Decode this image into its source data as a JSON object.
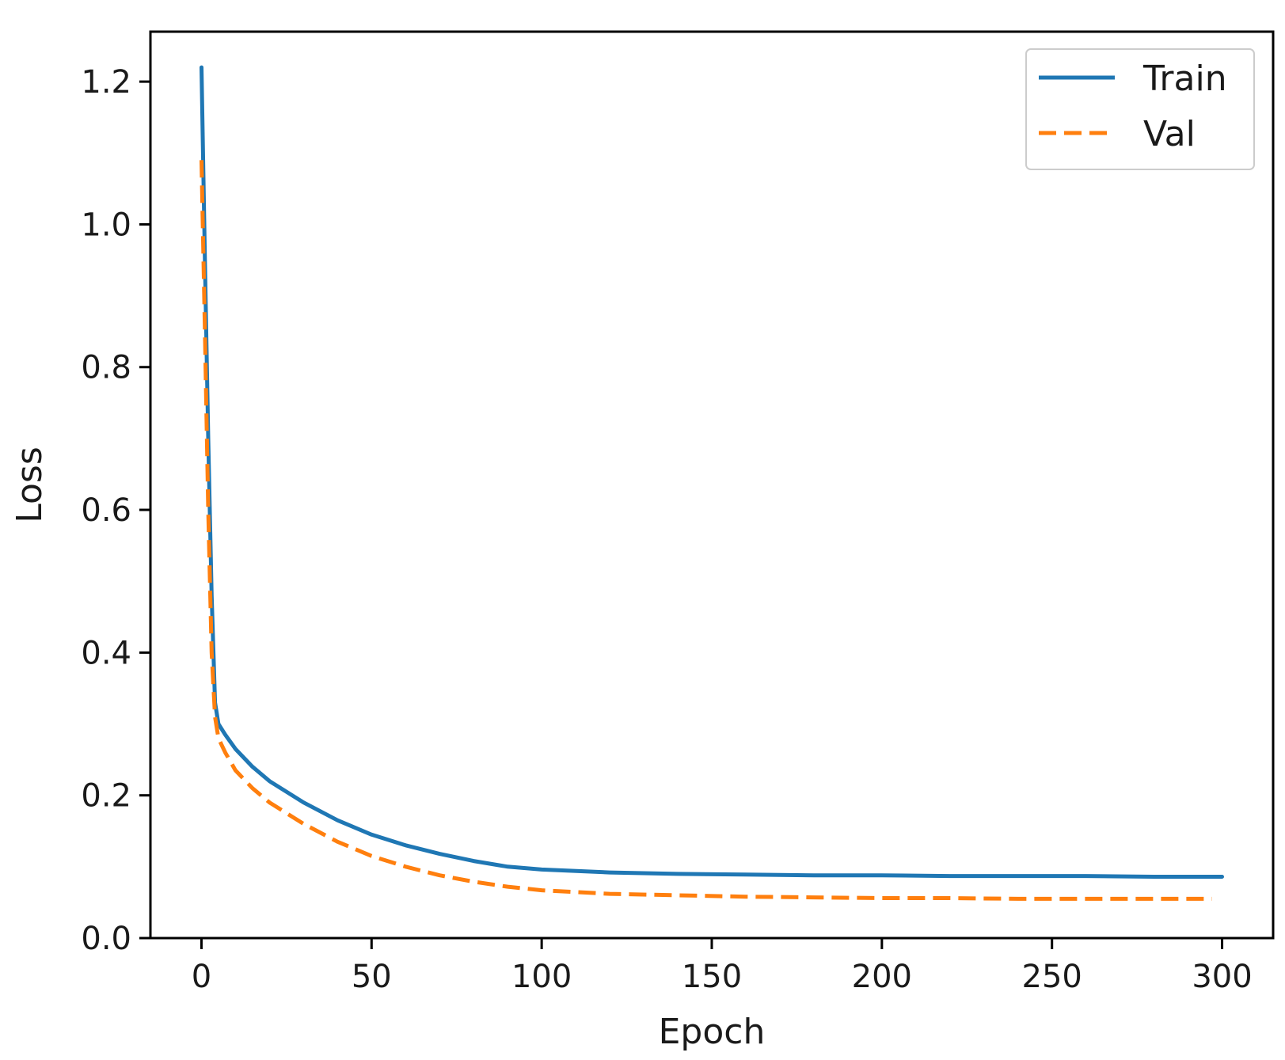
{
  "chart_data": {
    "type": "line",
    "title": "",
    "xlabel": "Epoch",
    "ylabel": "Loss",
    "xlim": [
      -15,
      315
    ],
    "ylim": [
      0.0,
      1.27
    ],
    "xticks": [
      0,
      50,
      100,
      150,
      200,
      250,
      300
    ],
    "xtick_labels": [
      "0",
      "50",
      "100",
      "150",
      "200",
      "250",
      "300"
    ],
    "yticks": [
      0.0,
      0.2,
      0.4,
      0.6,
      0.8,
      1.0,
      1.2
    ],
    "ytick_labels": [
      "0.0",
      "0.2",
      "0.4",
      "0.6",
      "0.8",
      "1.0",
      "1.2"
    ],
    "grid": false,
    "legend": {
      "position": "top-right"
    },
    "series": [
      {
        "name": "Train",
        "color": "#1f77b4",
        "style": "solid",
        "x": [
          0,
          1,
          2,
          3,
          4,
          5,
          7,
          10,
          15,
          20,
          30,
          40,
          50,
          60,
          70,
          80,
          90,
          100,
          120,
          140,
          160,
          180,
          200,
          220,
          240,
          260,
          280,
          300
        ],
        "y": [
          1.22,
          0.95,
          0.7,
          0.48,
          0.33,
          0.3,
          0.285,
          0.265,
          0.24,
          0.22,
          0.19,
          0.165,
          0.145,
          0.13,
          0.118,
          0.108,
          0.1,
          0.096,
          0.092,
          0.09,
          0.089,
          0.088,
          0.088,
          0.087,
          0.087,
          0.087,
          0.086,
          0.086
        ]
      },
      {
        "name": "Val",
        "color": "#ff7f0e",
        "style": "dashed",
        "x": [
          0,
          1,
          2,
          3,
          4,
          5,
          7,
          10,
          15,
          20,
          30,
          40,
          50,
          60,
          70,
          80,
          90,
          100,
          120,
          140,
          160,
          180,
          200,
          220,
          240,
          260,
          280,
          297
        ],
        "y": [
          1.09,
          0.85,
          0.6,
          0.4,
          0.31,
          0.28,
          0.26,
          0.235,
          0.21,
          0.19,
          0.16,
          0.135,
          0.115,
          0.1,
          0.088,
          0.079,
          0.072,
          0.067,
          0.062,
          0.06,
          0.058,
          0.057,
          0.056,
          0.056,
          0.055,
          0.055,
          0.055,
          0.055
        ]
      }
    ]
  }
}
